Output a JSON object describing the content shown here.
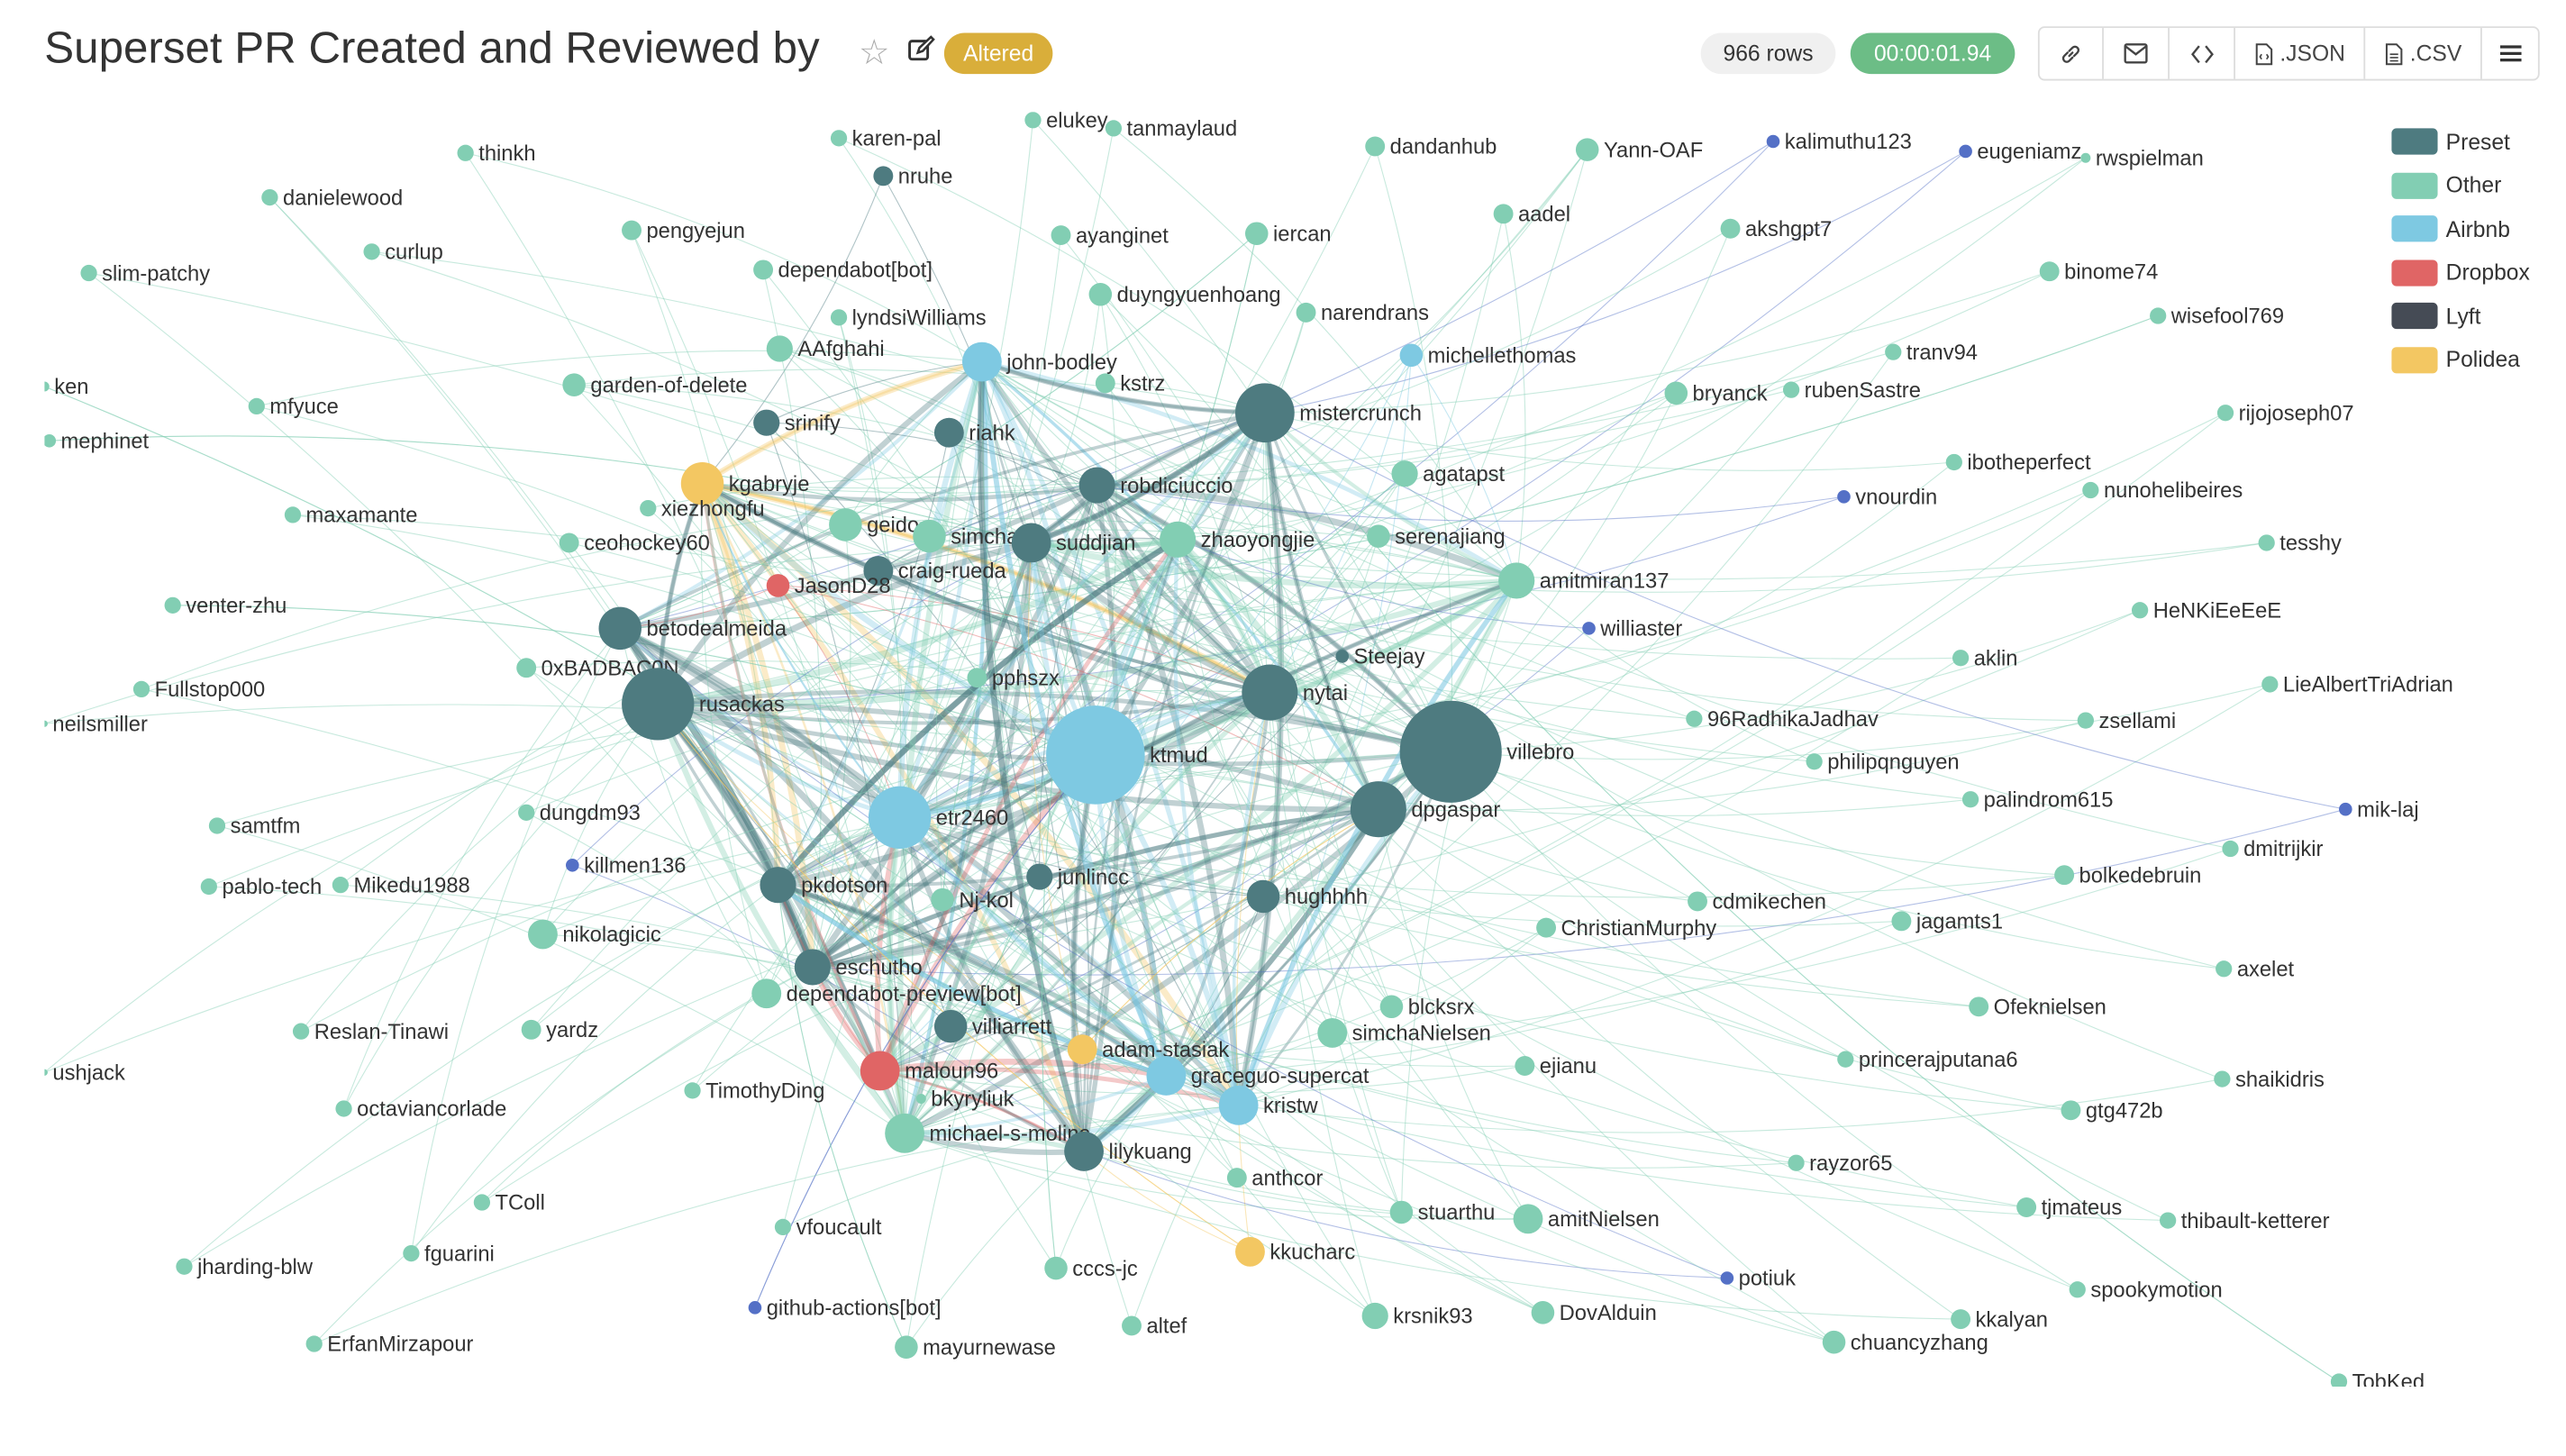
{
  "header": {
    "title": "Superset PR Created and Reviewed by",
    "star_icon": "star-icon",
    "edit_icon": "edit-icon",
    "altered_label": "Altered",
    "row_count": "966 rows",
    "query_time": "00:00:01.94",
    "toolbar": {
      "link_icon": "link-icon",
      "email_icon": "mail-icon",
      "embed_icon": "code-icon",
      "json_label": ".JSON",
      "csv_label": ".CSV",
      "menu_icon": "menu-icon"
    }
  },
  "colors": {
    "Preset": "#4e7b80",
    "Other": "#82ceb3",
    "Airbnb": "#7ec9e2",
    "Dropbox": "#e06565",
    "Lyft": "#454b55",
    "Polidea": "#f3c762",
    "uncategorized": "#5470c6",
    "altered_badge": "#d9ae3a",
    "timer_badge": "#6cbd86"
  },
  "legend": [
    {
      "label": "Preset"
    },
    {
      "label": "Other"
    },
    {
      "label": "Airbnb"
    },
    {
      "label": "Dropbox"
    },
    {
      "label": "Lyft"
    },
    {
      "label": "Polidea"
    }
  ],
  "nodes": [
    {
      "name": "thinkh",
      "category": "Other"
    },
    {
      "name": "karen-pal",
      "category": "Other"
    },
    {
      "name": "elukey",
      "category": "Other"
    },
    {
      "name": "tanmaylaud",
      "category": "Other"
    },
    {
      "name": "dandanhub",
      "category": "Other"
    },
    {
      "name": "Yann-OAF",
      "category": "Other"
    },
    {
      "name": "kalimuthu123",
      "category": "uncategorized"
    },
    {
      "name": "eugeniamz",
      "category": "uncategorized"
    },
    {
      "name": "rwspielman",
      "category": "Other"
    },
    {
      "name": "danielewood",
      "category": "Other"
    },
    {
      "name": "nruhe",
      "category": "Preset"
    },
    {
      "name": "pengyejun",
      "category": "Other"
    },
    {
      "name": "ayanginet",
      "category": "Other"
    },
    {
      "name": "iercan",
      "category": "Other"
    },
    {
      "name": "aadel",
      "category": "Other"
    },
    {
      "name": "akshgpt7",
      "category": "Other"
    },
    {
      "name": "curlup",
      "category": "Other"
    },
    {
      "name": "slim-patchy",
      "category": "Other"
    },
    {
      "name": "dependabot[bot]",
      "category": "Other"
    },
    {
      "name": "binome74",
      "category": "Other"
    },
    {
      "name": "duyngyuenhoang",
      "category": "Other"
    },
    {
      "name": "narendrans",
      "category": "Other"
    },
    {
      "name": "wisefool769",
      "category": "Other"
    },
    {
      "name": "lyndsiWilliams",
      "category": "Other"
    },
    {
      "name": "AAfghahi",
      "category": "Other"
    },
    {
      "name": "john-bodley",
      "category": "Airbnb"
    },
    {
      "name": "michellethomas",
      "category": "Airbnb"
    },
    {
      "name": "tranv94",
      "category": "Other"
    },
    {
      "name": "kstrz",
      "category": "Other"
    },
    {
      "name": "garden-of-delete",
      "category": "Other"
    },
    {
      "name": "bryanck",
      "category": "Other"
    },
    {
      "name": "rubenSastre",
      "category": "Other"
    },
    {
      "name": "ken",
      "category": "Other"
    },
    {
      "name": "mistercrunch",
      "category": "Preset"
    },
    {
      "name": "mfyuce",
      "category": "Other"
    },
    {
      "name": "rijojoseph07",
      "category": "Other"
    },
    {
      "name": "srinify",
      "category": "Preset"
    },
    {
      "name": "riahk",
      "category": "Preset"
    },
    {
      "name": "mephinet",
      "category": "Other"
    },
    {
      "name": "ibotheperfect",
      "category": "Other"
    },
    {
      "name": "agatapst",
      "category": "Other"
    },
    {
      "name": "kgabryje",
      "category": "Polidea"
    },
    {
      "name": "robdiciuccio",
      "category": "Preset"
    },
    {
      "name": "nunohelibeires",
      "category": "Other"
    },
    {
      "name": "vnourdin",
      "category": "uncategorized"
    },
    {
      "name": "xiezhongfu",
      "category": "Other"
    },
    {
      "name": "maxamante",
      "category": "Other"
    },
    {
      "name": "ceohockey60",
      "category": "Other"
    },
    {
      "name": "geido",
      "category": "Other"
    },
    {
      "name": "simcha90",
      "category": "Other"
    },
    {
      "name": "suddjian",
      "category": "Preset"
    },
    {
      "name": "zhaoyongjie",
      "category": "Other"
    },
    {
      "name": "serenajiang",
      "category": "Other"
    },
    {
      "name": "tesshy",
      "category": "Other"
    },
    {
      "name": "craig-rueda",
      "category": "Preset"
    },
    {
      "name": "amitmiran137",
      "category": "Other"
    },
    {
      "name": "JasonD28",
      "category": "Dropbox"
    },
    {
      "name": "venter-zhu",
      "category": "Other"
    },
    {
      "name": "HeNKiEeEeE",
      "category": "Other"
    },
    {
      "name": "betodealmeida",
      "category": "Preset"
    },
    {
      "name": "williaster",
      "category": "uncategorized"
    },
    {
      "name": "aklin",
      "category": "Other"
    },
    {
      "name": "Steejay",
      "category": "Preset"
    },
    {
      "name": "0xBADBAC0N",
      "category": "Other"
    },
    {
      "name": "pphszx",
      "category": "Other"
    },
    {
      "name": "LieAlbertTriAdrian",
      "category": "Other"
    },
    {
      "name": "nytai",
      "category": "Preset"
    },
    {
      "name": "Fullstop000",
      "category": "Other"
    },
    {
      "name": "rusackas",
      "category": "Preset"
    },
    {
      "name": "96RadhikaJadhav",
      "category": "Other"
    },
    {
      "name": "zsellami",
      "category": "Other"
    },
    {
      "name": "neilsmiller",
      "category": "Other"
    },
    {
      "name": "ktmud",
      "category": "Airbnb"
    },
    {
      "name": "villebro",
      "category": "Preset"
    },
    {
      "name": "philipqnguyen",
      "category": "Other"
    },
    {
      "name": "palindrom615",
      "category": "Other"
    },
    {
      "name": "dpgaspar",
      "category": "Preset"
    },
    {
      "name": "mik-laj",
      "category": "uncategorized"
    },
    {
      "name": "etr2460",
      "category": "Airbnb"
    },
    {
      "name": "dungdm93",
      "category": "Other"
    },
    {
      "name": "samtfm",
      "category": "Other"
    },
    {
      "name": "dmitrijkir",
      "category": "Other"
    },
    {
      "name": "killmen136",
      "category": "uncategorized"
    },
    {
      "name": "bolkedebruin",
      "category": "Other"
    },
    {
      "name": "junlincc",
      "category": "Preset"
    },
    {
      "name": "pkdotson",
      "category": "Preset"
    },
    {
      "name": "pablo-tech",
      "category": "Other"
    },
    {
      "name": "Mikedu1988",
      "category": "Other"
    },
    {
      "name": "hughhhh",
      "category": "Preset"
    },
    {
      "name": "Nj-kol",
      "category": "Other"
    },
    {
      "name": "cdmikechen",
      "category": "Other"
    },
    {
      "name": "jagamts1",
      "category": "Other"
    },
    {
      "name": "ChristianMurphy",
      "category": "Other"
    },
    {
      "name": "nikolagicic",
      "category": "Other"
    },
    {
      "name": "eschutho",
      "category": "Preset"
    },
    {
      "name": "axelet",
      "category": "Other"
    },
    {
      "name": "dependabot-preview[bot]",
      "category": "Other"
    },
    {
      "name": "villiarrett",
      "category": "Preset"
    },
    {
      "name": "blcksrx",
      "category": "Other"
    },
    {
      "name": "Ofeknielsen",
      "category": "Other"
    },
    {
      "name": "yardz",
      "category": "Other"
    },
    {
      "name": "Reslan-Tinawi",
      "category": "Other"
    },
    {
      "name": "simchaNielsen",
      "category": "Other"
    },
    {
      "name": "princerajputana6",
      "category": "Other"
    },
    {
      "name": "adam-stasiak",
      "category": "Polidea"
    },
    {
      "name": "ejianu",
      "category": "Other"
    },
    {
      "name": "maloun96",
      "category": "Dropbox"
    },
    {
      "name": "bkyryliuk",
      "category": "Other"
    },
    {
      "name": "graceguo-supercat",
      "category": "Airbnb"
    },
    {
      "name": "ushjack",
      "category": "Other"
    },
    {
      "name": "shaikidris",
      "category": "Other"
    },
    {
      "name": "kristw",
      "category": "Airbnb"
    },
    {
      "name": "TimothyDing",
      "category": "Other"
    },
    {
      "name": "octaviancorlade",
      "category": "Other"
    },
    {
      "name": "gtg472b",
      "category": "Other"
    },
    {
      "name": "michael-s-molina",
      "category": "Other"
    },
    {
      "name": "lilykuang",
      "category": "Preset"
    },
    {
      "name": "rayzor65",
      "category": "Other"
    },
    {
      "name": "anthcor",
      "category": "Other"
    },
    {
      "name": "TColl",
      "category": "Other"
    },
    {
      "name": "stuarthu",
      "category": "Other"
    },
    {
      "name": "tjmateus",
      "category": "Other"
    },
    {
      "name": "amitNielsen",
      "category": "Other"
    },
    {
      "name": "thibault-ketterer",
      "category": "Other"
    },
    {
      "name": "vfoucault",
      "category": "Other"
    },
    {
      "name": "fguarini",
      "category": "Other"
    },
    {
      "name": "kkucharc",
      "category": "Polidea"
    },
    {
      "name": "jharding-blw",
      "category": "Other"
    },
    {
      "name": "cccs-jc",
      "category": "Other"
    },
    {
      "name": "potiuk",
      "category": "uncategorized"
    },
    {
      "name": "spookymotion",
      "category": "Other"
    },
    {
      "name": "github-actions[bot]",
      "category": "uncategorized"
    },
    {
      "name": "altef",
      "category": "Other"
    },
    {
      "name": "krsnik93",
      "category": "Other"
    },
    {
      "name": "DovAlduin",
      "category": "Other"
    },
    {
      "name": "kkalyan",
      "category": "Other"
    },
    {
      "name": "ErfanMirzapour",
      "category": "Other"
    },
    {
      "name": "mayurnewase",
      "category": "Other"
    },
    {
      "name": "chuancyzhang",
      "category": "Other"
    },
    {
      "name": "TobKed",
      "category": "Other"
    }
  ]
}
